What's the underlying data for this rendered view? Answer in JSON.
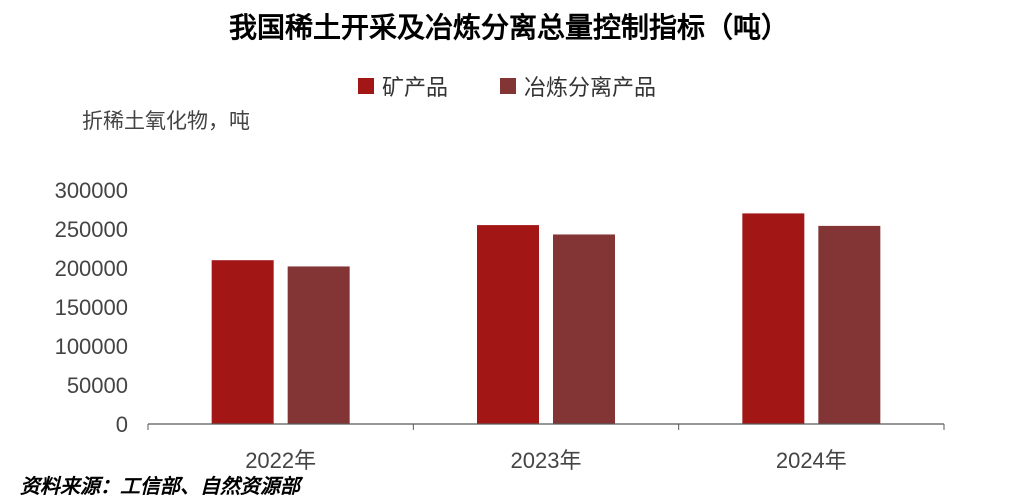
{
  "chart_data": {
    "type": "bar",
    "title": "我国稀土开采及冶炼分离总量控制指标（吨）",
    "ylabel": "折稀土氧化物，吨",
    "categories": [
      "2022年",
      "2023年",
      "2024年"
    ],
    "series": [
      {
        "name": "矿产品",
        "values": [
          210000,
          255000,
          270000
        ],
        "color": "#A31616"
      },
      {
        "name": "冶炼分离产品",
        "values": [
          202000,
          243000,
          254000
        ],
        "color": "#833535"
      }
    ],
    "ylim": [
      0,
      300000
    ],
    "yticks": [
      0,
      50000,
      100000,
      150000,
      200000,
      250000,
      300000
    ],
    "grid": false,
    "legend_position": "top"
  },
  "source": "资料来源：工信部、自然资源部"
}
